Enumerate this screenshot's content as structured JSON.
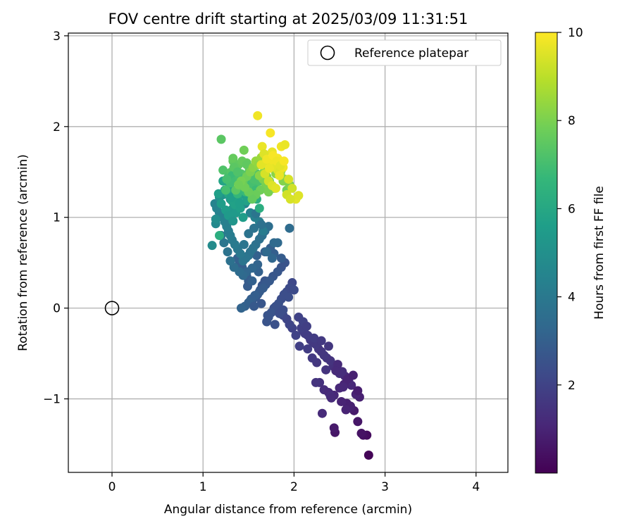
{
  "chart_data": {
    "type": "scatter",
    "title": "FOV centre drift starting at 2025/03/09 11:31:51",
    "xlabel": "Angular distance from reference (arcmin)",
    "ylabel": "Rotation from reference (arcmin)",
    "xlim": [
      -0.48,
      4.35
    ],
    "ylim": [
      -1.81,
      3.03
    ],
    "xticks": [
      0,
      1,
      2,
      3,
      4
    ],
    "xtick_labels": [
      "0",
      "1",
      "2",
      "3",
      "4"
    ],
    "yticks": [
      -1,
      0,
      1,
      2,
      3
    ],
    "ytick_labels": [
      "−1",
      "0",
      "1",
      "2",
      "3"
    ],
    "grid": true,
    "legend": {
      "placement": "top-right",
      "entries": [
        "Reference platepar"
      ]
    },
    "reference_point": {
      "name": "Reference platepar",
      "x": 0,
      "y": 0
    },
    "colorbar": {
      "label": "Hours from first FF file",
      "colormap": "viridis",
      "range": [
        0,
        10
      ],
      "ticks": [
        2,
        4,
        6,
        8,
        10
      ],
      "tick_labels": [
        "2",
        "4",
        "6",
        "8",
        "10"
      ]
    },
    "series": [
      {
        "x": [
          2.82,
          2.8,
          2.76,
          2.74,
          2.7,
          2.66,
          2.62,
          2.58,
          2.52,
          2.45,
          2.44,
          2.72,
          2.68,
          2.63,
          2.6,
          2.56,
          2.53,
          2.5,
          2.46,
          2.43,
          2.4,
          2.36,
          2.33,
          2.3,
          2.27,
          2.24,
          2.21,
          2.18,
          2.15,
          2.12,
          2.1,
          2.08,
          2.28,
          2.33,
          2.38,
          2.44,
          2.5,
          2.55,
          2.59,
          2.65,
          2.7,
          2.48,
          2.35,
          2.25,
          2.2,
          2.15,
          2.06,
          2.02,
          1.98,
          1.95,
          1.92,
          1.88,
          2.05,
          2.1,
          2.14,
          2.22,
          2.3,
          2.38,
          2.24,
          2.4,
          2.31,
          2.46,
          2.54,
          2.62,
          2.57,
          2.41
        ],
        "y": [
          -1.62,
          -1.4,
          -1.4,
          -1.38,
          -1.25,
          -1.13,
          -1.1,
          -1.05,
          -1.03,
          -1.37,
          -1.32,
          -0.98,
          -0.95,
          -0.85,
          -0.8,
          -0.75,
          -0.7,
          -0.72,
          -0.66,
          -0.64,
          -0.58,
          -0.55,
          -0.52,
          -0.48,
          -0.45,
          -0.4,
          -0.38,
          -0.35,
          -0.3,
          -0.28,
          -0.25,
          -0.22,
          -0.82,
          -0.9,
          -0.93,
          -0.96,
          -0.88,
          -0.84,
          -0.78,
          -0.74,
          -0.91,
          -0.62,
          -0.68,
          -0.6,
          -0.55,
          -0.45,
          -0.42,
          -0.3,
          -0.22,
          -0.18,
          -0.12,
          -0.08,
          -0.1,
          -0.15,
          -0.2,
          -0.33,
          -0.36,
          -0.42,
          -0.82,
          -0.97,
          -1.16,
          -0.69,
          -0.87,
          -1.08,
          -1.12,
          -0.99
        ],
        "hours": [
          0.1,
          0.3,
          0.4,
          0.5,
          0.6,
          0.7,
          0.8,
          0.9,
          1.0,
          0.6,
          0.7,
          0.9,
          1.0,
          1.1,
          1.2,
          1.2,
          1.3,
          1.3,
          1.4,
          1.4,
          1.5,
          1.5,
          1.6,
          1.6,
          1.6,
          1.7,
          1.7,
          1.7,
          1.8,
          1.8,
          1.8,
          1.9,
          1.4,
          1.3,
          1.2,
          1.1,
          1.1,
          1.0,
          1.0,
          0.9,
          0.8,
          1.2,
          1.5,
          1.6,
          1.7,
          1.8,
          1.9,
          2.0,
          2.0,
          2.1,
          2.1,
          2.2,
          2.0,
          2.0,
          1.9,
          1.8,
          1.7,
          1.6,
          1.5,
          1.3,
          1.2,
          1.2,
          1.1,
          0.9,
          1.0,
          1.2
        ]
      },
      {
        "x": [
          1.98,
          1.95,
          1.92,
          1.89,
          1.86,
          1.83,
          1.8,
          1.78,
          1.75,
          1.72,
          1.7,
          1.68,
          1.65,
          1.63,
          1.6,
          1.58,
          1.55,
          1.52,
          1.5,
          1.48,
          1.45,
          1.43,
          1.4,
          1.38,
          1.9,
          1.86,
          1.82,
          1.77,
          1.73,
          1.69,
          1.66,
          1.62,
          1.57,
          1.53,
          1.5,
          1.46,
          1.42,
          1.88,
          1.84,
          2.0,
          1.94,
          1.79,
          1.71,
          1.64,
          1.56,
          1.49,
          1.86,
          1.78,
          1.61,
          1.54,
          1.68,
          1.74,
          1.59
        ],
        "y": [
          0.28,
          0.22,
          0.18,
          0.15,
          0.1,
          0.05,
          0.02,
          0.0,
          -0.05,
          -0.1,
          -0.15,
          0.3,
          0.25,
          0.2,
          0.15,
          0.12,
          0.1,
          0.08,
          0.3,
          0.35,
          0.4,
          0.45,
          0.5,
          0.55,
          0.5,
          0.45,
          0.4,
          0.35,
          0.3,
          0.26,
          0.22,
          0.18,
          0.14,
          0.1,
          0.06,
          0.02,
          0.0,
          -0.02,
          -0.06,
          0.2,
          0.12,
          -0.18,
          -0.08,
          0.05,
          0.02,
          0.24,
          0.55,
          0.6,
          0.4,
          0.3,
          0.62,
          0.66,
          0.58
        ],
        "hours": [
          2.2,
          2.3,
          2.3,
          2.4,
          2.4,
          2.5,
          2.5,
          2.5,
          2.6,
          2.6,
          2.6,
          2.7,
          2.7,
          2.7,
          2.8,
          2.8,
          2.8,
          2.9,
          2.9,
          2.9,
          3.0,
          3.0,
          3.0,
          3.1,
          2.6,
          2.6,
          2.7,
          2.7,
          2.8,
          2.8,
          2.9,
          2.9,
          3.0,
          3.0,
          3.1,
          3.1,
          3.2,
          2.4,
          2.4,
          2.3,
          2.4,
          2.5,
          2.6,
          2.7,
          2.8,
          2.9,
          2.9,
          3.0,
          3.1,
          3.1,
          3.0,
          3.0,
          3.1
        ]
      },
      {
        "x": [
          1.95,
          1.82,
          1.78,
          1.72,
          1.68,
          1.65,
          1.62,
          1.58,
          1.55,
          1.52,
          1.5,
          1.47,
          1.44,
          1.41,
          1.38,
          1.35,
          1.32,
          1.3,
          1.28,
          1.26,
          1.24,
          1.21,
          1.18,
          1.15,
          1.13,
          1.36,
          1.42,
          1.46,
          1.52,
          1.57,
          1.62,
          1.66,
          1.6,
          1.54,
          1.48,
          1.44,
          1.4,
          1.34,
          1.3,
          1.27,
          1.23,
          1.2,
          1.45,
          1.5,
          1.56,
          1.7,
          1.76,
          1.64,
          1.58,
          1.38
        ],
        "y": [
          0.88,
          0.72,
          0.72,
          0.9,
          0.85,
          0.8,
          0.76,
          0.7,
          0.66,
          0.62,
          0.58,
          0.55,
          0.52,
          0.6,
          0.65,
          0.7,
          0.75,
          0.8,
          0.85,
          0.9,
          0.95,
          1.0,
          1.05,
          1.1,
          1.15,
          1.2,
          1.25,
          1.15,
          1.05,
          1.0,
          0.95,
          0.85,
          0.48,
          0.44,
          0.4,
          0.36,
          0.4,
          0.45,
          0.52,
          0.62,
          0.72,
          0.8,
          0.7,
          0.82,
          0.88,
          0.62,
          0.55,
          0.92,
          1.04,
          1.12
        ],
        "hours": [
          3.5,
          3.4,
          3.4,
          3.6,
          3.6,
          3.7,
          3.7,
          3.7,
          3.8,
          3.8,
          3.8,
          3.9,
          3.9,
          4.0,
          4.0,
          4.1,
          4.1,
          4.2,
          4.2,
          4.3,
          4.3,
          4.4,
          4.4,
          4.5,
          4.5,
          4.6,
          4.6,
          4.5,
          4.4,
          4.4,
          4.3,
          4.2,
          3.2,
          3.3,
          3.3,
          3.4,
          3.5,
          3.6,
          3.7,
          3.8,
          3.9,
          4.0,
          3.9,
          3.8,
          3.8,
          3.4,
          3.3,
          3.7,
          3.9,
          4.4
        ]
      },
      {
        "x": [
          1.1,
          1.14,
          1.14,
          1.18,
          1.22,
          1.26,
          1.3,
          1.33,
          1.36,
          1.39,
          1.42,
          1.45,
          1.48,
          1.22,
          1.17,
          1.2,
          1.25,
          1.28,
          1.32,
          1.35,
          1.38,
          1.41,
          1.44,
          1.47,
          1.5,
          1.53,
          1.56,
          1.59,
          1.62,
          1.29,
          1.33,
          1.37,
          1.4,
          1.28,
          1.24,
          1.31,
          1.36,
          1.46,
          1.5,
          1.55
        ],
        "y": [
          0.69,
          0.93,
          0.98,
          1.22,
          1.25,
          1.28,
          1.2,
          1.1,
          1.05,
          1.3,
          1.35,
          1.25,
          1.18,
          1.4,
          1.26,
          1.15,
          1.08,
          1.02,
          1.18,
          1.14,
          1.22,
          1.1,
          1.0,
          1.3,
          1.28,
          1.35,
          1.25,
          1.2,
          1.1,
          1.34,
          0.96,
          1.42,
          1.16,
          1.26,
          1.3,
          1.22,
          1.3,
          1.36,
          1.48,
          1.36
        ],
        "hours": [
          4.8,
          4.7,
          4.9,
          5.0,
          5.1,
          5.2,
          5.2,
          5.3,
          5.4,
          5.5,
          5.6,
          5.6,
          5.7,
          5.8,
          5.6,
          5.5,
          5.5,
          5.4,
          5.7,
          5.7,
          5.8,
          5.6,
          5.5,
          5.9,
          6.0,
          6.1,
          6.1,
          6.2,
          6.2,
          5.9,
          5.2,
          6.3,
          5.6,
          5.9,
          5.7,
          5.6,
          5.8,
          6.0,
          6.4,
          6.2
        ]
      },
      {
        "x": [
          1.18,
          1.2,
          1.22,
          1.25,
          1.28,
          1.31,
          1.33,
          1.33,
          1.36,
          1.39,
          1.42,
          1.45,
          1.48,
          1.51,
          1.54,
          1.57,
          1.6,
          1.32,
          1.36,
          1.4,
          1.44,
          1.47,
          1.5,
          1.53,
          1.56,
          1.59,
          1.34,
          1.38,
          1.43,
          1.48,
          1.52,
          1.46,
          1.42,
          1.38,
          1.3,
          1.26,
          1.58,
          1.62
        ],
        "y": [
          0.8,
          1.86,
          1.52,
          1.3,
          1.45,
          1.5,
          1.62,
          1.65,
          1.55,
          1.58,
          1.48,
          1.74,
          1.6,
          1.52,
          1.4,
          1.35,
          1.45,
          1.46,
          1.4,
          1.44,
          1.32,
          1.28,
          1.36,
          1.25,
          1.42,
          1.48,
          1.55,
          1.5,
          1.62,
          1.58,
          1.46,
          1.38,
          1.33,
          1.26,
          1.38,
          1.42,
          1.3,
          1.4
        ],
        "hours": [
          6.2,
          7.4,
          7.2,
          7.0,
          7.1,
          7.3,
          7.5,
          7.6,
          7.4,
          7.5,
          7.3,
          7.8,
          7.6,
          7.4,
          7.2,
          7.0,
          7.3,
          6.8,
          6.9,
          7.0,
          6.8,
          6.7,
          7.0,
          6.7,
          7.1,
          7.3,
          7.4,
          7.2,
          7.6,
          7.5,
          7.1,
          6.9,
          6.8,
          6.6,
          6.9,
          7.0,
          6.8,
          7.1
        ]
      },
      {
        "x": [
          1.36,
          1.4,
          1.44,
          1.48,
          1.52,
          1.55,
          1.58,
          1.61,
          1.64,
          1.67,
          1.7,
          1.73,
          1.76,
          1.79,
          1.82,
          1.85,
          1.88,
          1.92,
          1.95,
          1.75,
          1.8,
          1.83,
          1.69,
          1.63,
          1.58,
          1.54,
          1.5,
          1.46,
          1.42,
          1.39,
          1.66,
          1.72,
          1.78,
          1.86,
          1.9,
          1.62
        ],
        "y": [
          1.3,
          1.35,
          1.4,
          1.45,
          1.5,
          1.55,
          1.62,
          1.58,
          1.66,
          1.5,
          1.45,
          1.4,
          1.58,
          1.52,
          1.6,
          1.48,
          1.4,
          1.3,
          1.36,
          1.56,
          1.48,
          1.62,
          1.35,
          1.3,
          1.25,
          1.2,
          1.28,
          1.33,
          1.4,
          1.36,
          1.42,
          1.28,
          1.32,
          1.52,
          1.42,
          1.46
        ],
        "hours": [
          7.4,
          7.5,
          7.6,
          7.8,
          8.0,
          8.2,
          8.4,
          8.3,
          8.5,
          8.1,
          8.0,
          7.9,
          8.6,
          8.4,
          8.8,
          8.3,
          8.1,
          7.8,
          8.0,
          8.5,
          8.2,
          8.7,
          7.9,
          7.8,
          7.7,
          7.6,
          7.7,
          7.8,
          7.9,
          7.8,
          8.0,
          7.9,
          8.0,
          8.4,
          8.1,
          8.2
        ]
      },
      {
        "x": [
          1.6,
          1.65,
          1.7,
          1.74,
          1.78,
          1.82,
          1.86,
          1.9,
          1.94,
          1.98,
          2.02,
          2.05,
          1.74,
          1.76,
          1.78,
          1.8,
          1.82,
          1.84,
          1.68,
          1.72,
          1.76,
          1.8,
          1.84,
          1.88,
          1.64,
          1.67,
          1.92,
          1.96,
          1.7,
          1.73,
          1.77,
          1.81,
          1.85,
          1.89
        ],
        "y": [
          2.12,
          1.78,
          1.62,
          1.58,
          1.65,
          1.52,
          1.78,
          1.8,
          1.42,
          1.32,
          1.2,
          1.24,
          1.93,
          1.72,
          1.6,
          1.55,
          1.65,
          1.5,
          1.48,
          1.4,
          1.35,
          1.32,
          1.46,
          1.55,
          1.58,
          1.7,
          1.25,
          1.2,
          1.64,
          1.54,
          1.68,
          1.62,
          1.57,
          1.62
        ],
        "hours": [
          9.8,
          9.7,
          9.9,
          9.6,
          10.0,
          9.5,
          9.8,
          9.7,
          9.4,
          9.3,
          9.6,
          9.5,
          9.9,
          9.7,
          9.8,
          9.6,
          9.9,
          9.5,
          9.4,
          9.3,
          9.5,
          9.6,
          9.7,
          9.8,
          9.6,
          9.5,
          9.3,
          9.4,
          9.8,
          9.7,
          9.9,
          9.8,
          9.6,
          9.9
        ]
      }
    ]
  }
}
